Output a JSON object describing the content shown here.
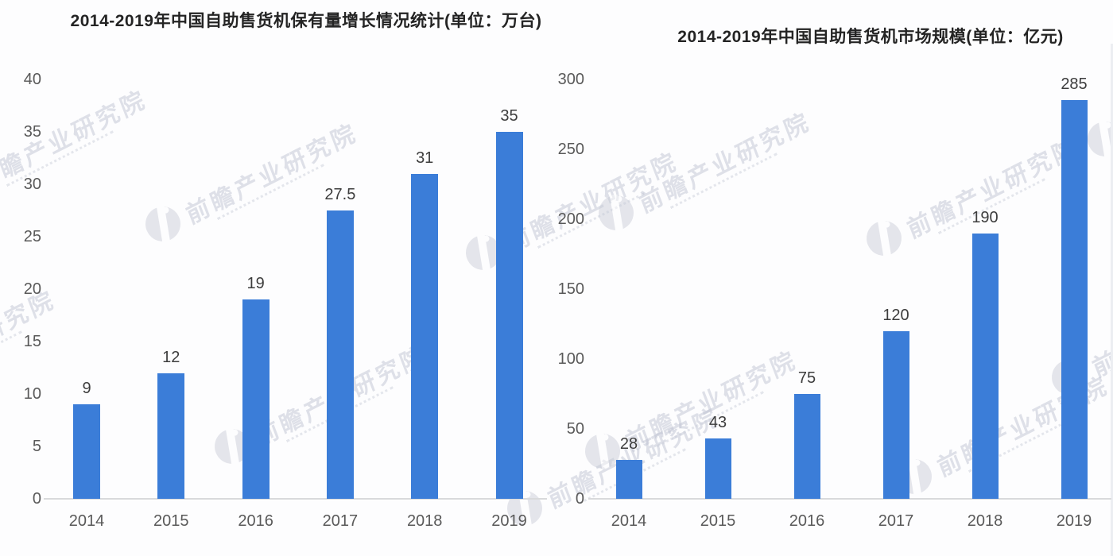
{
  "watermark": {
    "text": "前瞻产业研究院"
  },
  "colors": {
    "bar_blue": "#3b7dd8",
    "title_text": "#242424",
    "tick_text": "#595959",
    "value_text": "#3d3d3d",
    "axis_line": "#d9dadc"
  },
  "chart_data": [
    {
      "type": "bar",
      "title": "2014-2019年中国自助售货机保有量增长情况统计(单位：万台)",
      "categories": [
        "2014",
        "2015",
        "2016",
        "2017",
        "2018",
        "2019"
      ],
      "values": [
        9,
        12,
        19,
        27.5,
        31,
        35
      ],
      "unit": "万台",
      "xlabel": "",
      "ylabel": "",
      "ylim": [
        0,
        40
      ],
      "yticks": [
        0,
        5,
        10,
        15,
        20,
        25,
        30,
        35,
        40
      ],
      "grid": false,
      "legend_position": "none",
      "bar_color": "#3b7dd8"
    },
    {
      "type": "bar",
      "title": "2014-2019年中国自助售货机市场规模(单位：亿元)",
      "categories": [
        "2014",
        "2015",
        "2016",
        "2017",
        "2018",
        "2019"
      ],
      "values": [
        28,
        43,
        75,
        120,
        190,
        285
      ],
      "unit": "亿元",
      "xlabel": "",
      "ylabel": "",
      "ylim": [
        0,
        300
      ],
      "yticks": [
        0,
        50,
        100,
        150,
        200,
        250,
        300
      ],
      "grid": false,
      "legend_position": "none",
      "bar_color": "#3b7dd8"
    }
  ]
}
